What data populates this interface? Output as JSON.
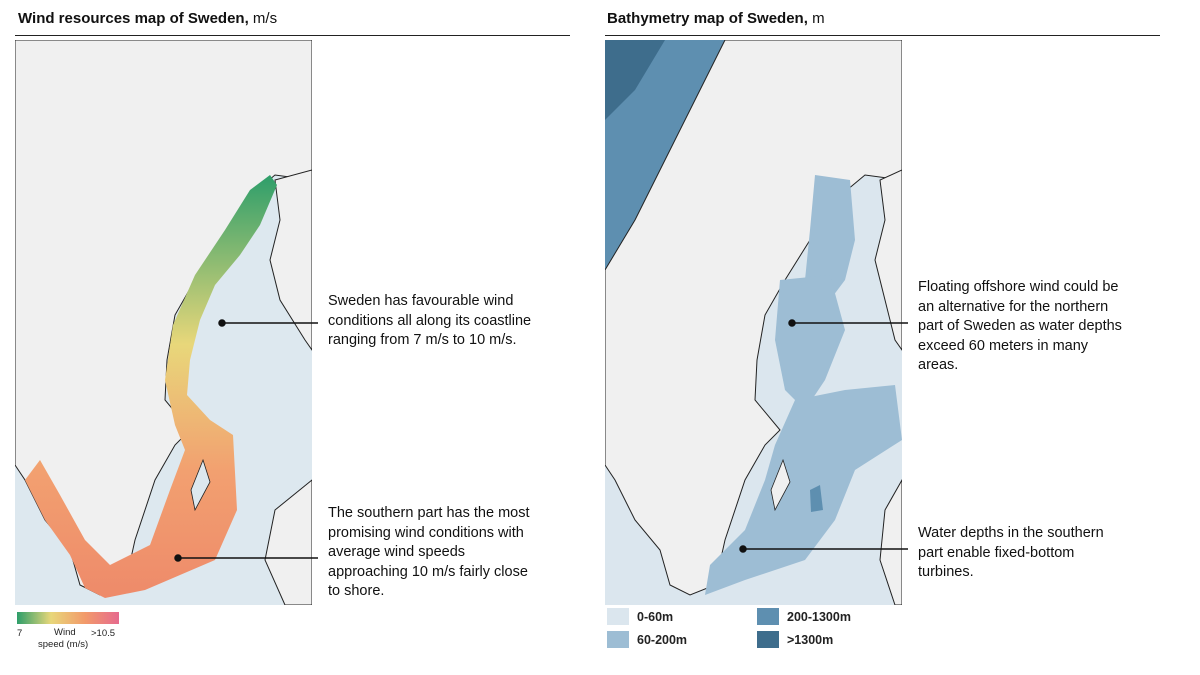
{
  "wind_panel": {
    "title": {
      "main": "Wind resources map of Sweden,",
      "unit": "m/s"
    },
    "annotations": [
      [
        "Sweden has favourable wind",
        "conditions all along its coastline",
        "ranging from 7 m/s to 10 m/s."
      ],
      [
        "The southern part has the most",
        "promising wind conditions with",
        "average wind speeds",
        "approaching 10 m/s fairly close",
        "to shore."
      ]
    ],
    "legend": {
      "min": "7",
      "label": [
        "Wind",
        "speed (m/s)"
      ],
      "max": ">10.5",
      "colors": [
        "#2e9e6a",
        "#e8d77a",
        "#f29a6a",
        "#e66a8e"
      ]
    }
  },
  "bathymetry_panel": {
    "title": {
      "main": "Bathymetry map of Sweden,",
      "unit": "m"
    },
    "annotations": [
      [
        "Floating offshore wind could be",
        "an alternative for the northern",
        "part of Sweden as water depths",
        "exceed 60 meters in many",
        "areas."
      ],
      [
        "Water depths in the southern",
        "part enable fixed-bottom",
        "turbines."
      ]
    ],
    "legend": [
      {
        "label": "0-60m",
        "color": "#dbe6ee"
      },
      {
        "label": "200-1300m",
        "color": "#5e8fb0"
      },
      {
        "label": "60-200m",
        "color": "#9dbdd4"
      },
      {
        "label": ">1300m",
        "color": "#3e6d8c"
      }
    ]
  }
}
